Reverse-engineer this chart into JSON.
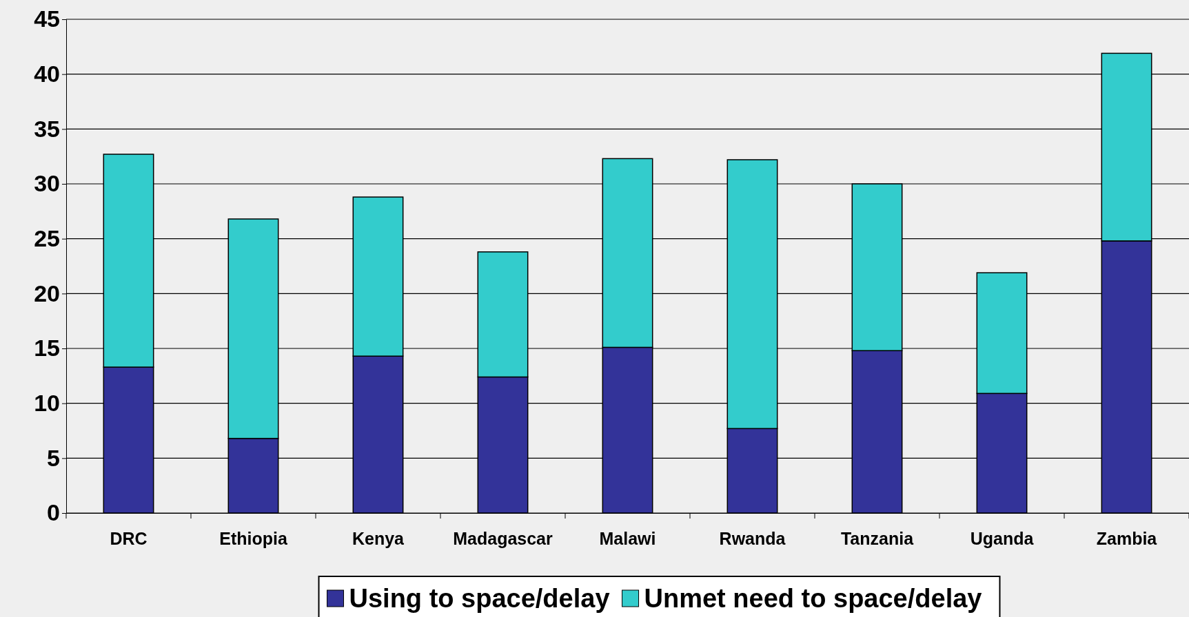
{
  "chart_data": {
    "type": "bar",
    "stacked": true,
    "categories": [
      "DRC",
      "Ethiopia",
      "Kenya",
      "Madagascar",
      "Malawi",
      "Rwanda",
      "Tanzania",
      "Uganda",
      "Zambia"
    ],
    "series": [
      {
        "name": "Using to space/delay",
        "color": "#333399",
        "values": [
          13.3,
          6.8,
          14.3,
          12.4,
          15.1,
          7.7,
          14.8,
          10.9,
          24.8
        ]
      },
      {
        "name": "Unmet need to space/delay",
        "color": "#33cccc",
        "values": [
          19.4,
          20.0,
          14.5,
          11.4,
          17.2,
          24.5,
          15.2,
          11.0,
          17.1
        ]
      }
    ],
    "ylim": [
      0,
      45
    ],
    "yticks": [
      0,
      5,
      10,
      15,
      20,
      25,
      30,
      35,
      40,
      45
    ],
    "grid": "y",
    "legend": "bottom"
  }
}
